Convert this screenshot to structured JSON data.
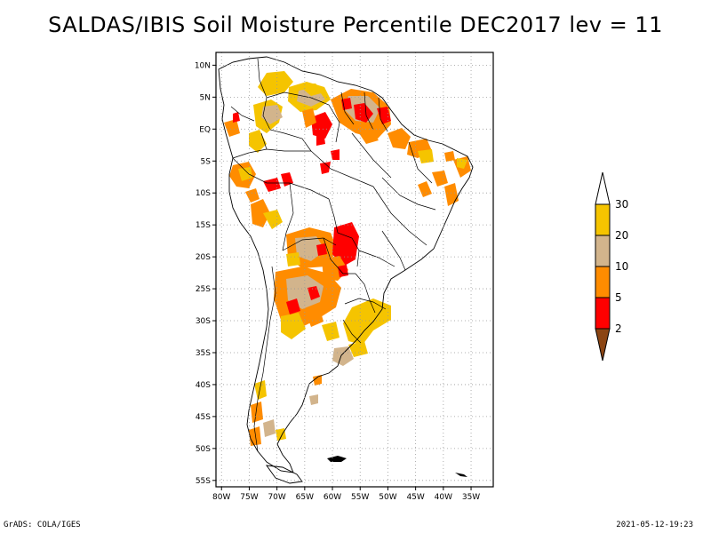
{
  "title": "SALDAS/IBIS Soil Moisture Percentile DEC2017 lev = 11",
  "footer": {
    "left": "GrADS: COLA/IGES",
    "right": "2021-05-12-19:23"
  },
  "map": {
    "lon_range": [
      -81,
      -31
    ],
    "lat_range": [
      -56,
      12
    ],
    "lat_labels": [
      "10N",
      "5N",
      "EQ",
      "5S",
      "10S",
      "15S",
      "20S",
      "25S",
      "30S",
      "35S",
      "40S",
      "45S",
      "50S",
      "55S"
    ],
    "lat_values": [
      10,
      5,
      0,
      -5,
      -10,
      -15,
      -20,
      -25,
      -30,
      -35,
      -40,
      -45,
      -50,
      -55
    ],
    "lon_labels": [
      "80W",
      "75W",
      "70W",
      "65W",
      "60W",
      "55W",
      "50W",
      "45W",
      "40W",
      "35W"
    ],
    "lon_values": [
      -80,
      -75,
      -70,
      -65,
      -60,
      -55,
      -50,
      -45,
      -40,
      -35
    ],
    "grid": true,
    "grid_style": "dotted"
  },
  "colorbar": {
    "labels": [
      "30",
      "20",
      "10",
      "5",
      "2"
    ],
    "bins": [
      {
        "color": "#ffffff",
        "range": "above 30"
      },
      {
        "color": "#f5c400",
        "range": "20-30"
      },
      {
        "color": "#d2b48c",
        "range": "10-20"
      },
      {
        "color": "#ff8c00",
        "range": "5-10"
      },
      {
        "color": "#ff0000",
        "range": "2-5"
      },
      {
        "color": "#8b4513",
        "range": "below 2"
      }
    ]
  }
}
